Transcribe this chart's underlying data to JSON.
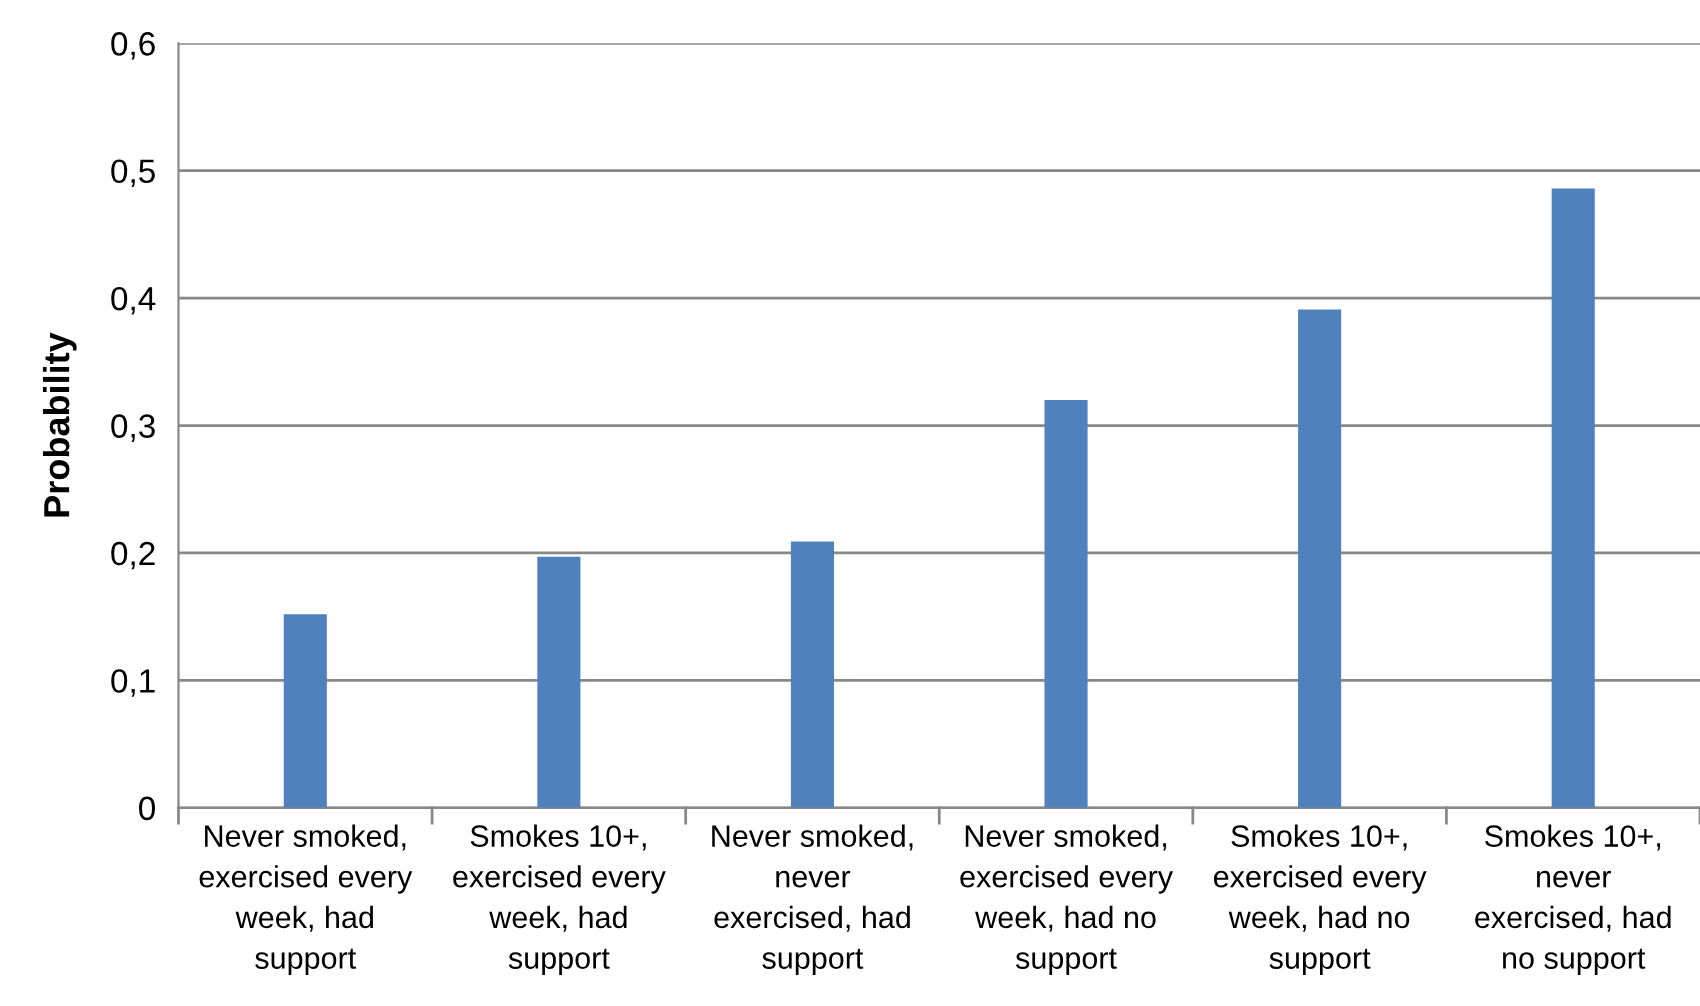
{
  "chart_data": {
    "type": "bar",
    "ylabel": "Probability",
    "categories": [
      "Never smoked,\nexercised every\nweek, had\nsupport",
      "Smokes 10+,\nexercised every\nweek, had\nsupport",
      "Never smoked,\nnever\nexercised, had\nsupport",
      "Never smoked,\nexercised every\nweek, had no\nsupport",
      "Smokes 10+,\nexercised every\nweek, had no\nsupport",
      "Smokes 10+,\nnever\nexercised, had\nno support"
    ],
    "values": [
      0.152,
      0.197,
      0.209,
      0.32,
      0.391,
      0.486
    ],
    "color": "#4f81bd",
    "ylim": [
      0,
      0.6
    ],
    "yticks": [
      0,
      {
        "value": 0.1,
        "label": "0,1"
      },
      {
        "value": 0.2,
        "label": "0,2"
      },
      {
        "value": 0.3,
        "label": "0,3"
      },
      {
        "value": 0.4,
        "label": "0,4"
      },
      {
        "value": 0.5,
        "label": "0,5"
      },
      {
        "value": 0.6,
        "label": "0,6"
      }
    ],
    "grid": "y",
    "legend": false
  }
}
